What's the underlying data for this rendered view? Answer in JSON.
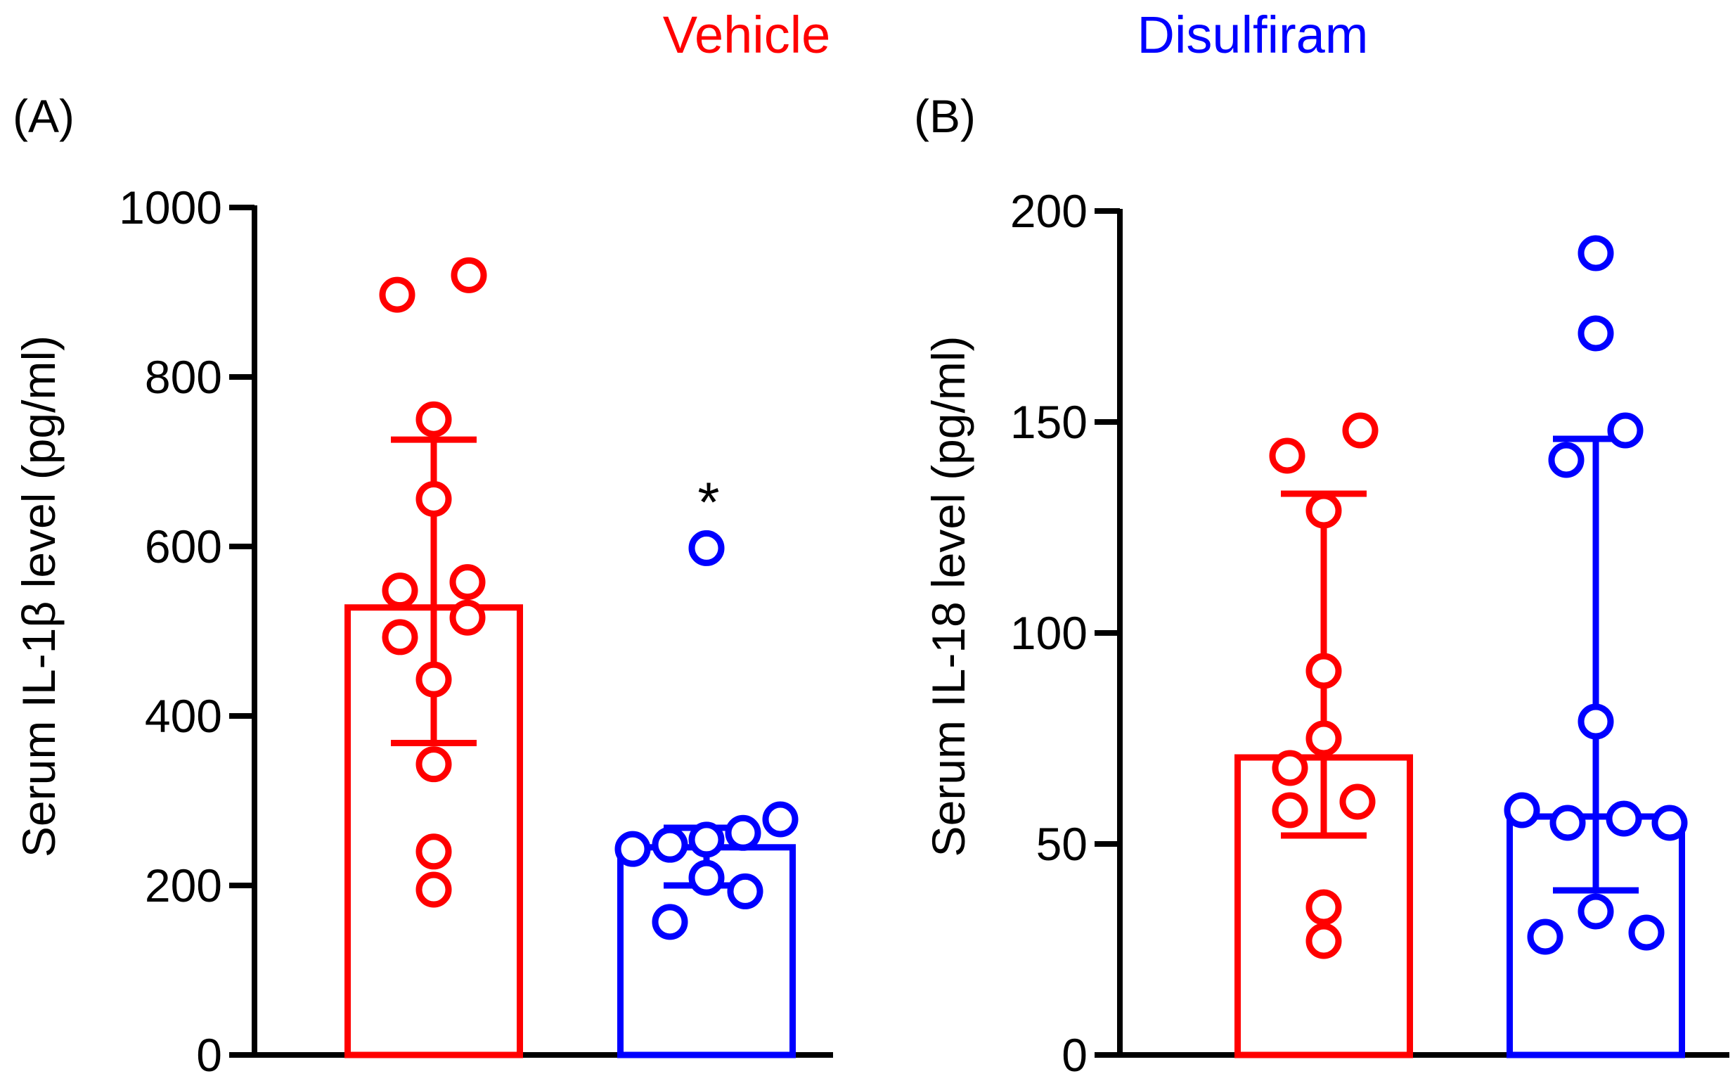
{
  "legend": {
    "entries": [
      {
        "label": "Vehicle",
        "color": "#ff0000"
      },
      {
        "label": "Disulfiram",
        "color": "#0000ff"
      }
    ],
    "placement": "top-center"
  },
  "colors": {
    "vehicle": "#ff0000",
    "disulfiram": "#0000ff",
    "axis": "#000000"
  },
  "chart_data": [
    {
      "type": "bar",
      "panel_label": "(A)",
      "title": "",
      "xlabel": "",
      "ylabel": "Serum IL-1β level (pg/ml)",
      "ylim": [
        0,
        1000
      ],
      "yticks": [
        "0",
        "200",
        "400",
        "600",
        "800",
        "1000"
      ],
      "categories": [
        "Vehicle",
        "Disulfiram"
      ],
      "series": [
        {
          "name": "Vehicle",
          "mean": 528,
          "sd_low": 368,
          "sd_high": 726,
          "points": [
            897,
            920,
            750,
            656,
            548,
            558,
            493,
            516,
            443,
            343,
            240,
            195
          ]
        },
        {
          "name": "Disulfiram",
          "mean": 245,
          "sd_low": 200,
          "sd_high": 268,
          "points": [
            598,
            243,
            248,
            254,
            262,
            278,
            209,
            193,
            157
          ]
        }
      ],
      "annotations": [
        {
          "text": "*",
          "category": "Disulfiram"
        }
      ]
    },
    {
      "type": "bar",
      "panel_label": "(B)",
      "title": "",
      "xlabel": "",
      "ylabel": "Serum IL-18 level (pg/ml)",
      "ylim": [
        0,
        200
      ],
      "yticks": [
        "0",
        "50",
        "100",
        "150",
        "200"
      ],
      "categories": [
        "Vehicle",
        "Disulfiram"
      ],
      "series": [
        {
          "name": "Vehicle",
          "mean": 70.5,
          "sd_low": 52,
          "sd_high": 133,
          "points": [
            148,
            142,
            129,
            91,
            75,
            68,
            60,
            58,
            35,
            27
          ]
        },
        {
          "name": "Disulfiram",
          "mean": 56.5,
          "sd_low": 39,
          "sd_high": 146,
          "points": [
            190,
            171,
            148,
            141,
            79,
            58,
            55,
            56,
            55,
            34,
            28,
            29
          ]
        }
      ],
      "annotations": []
    }
  ]
}
